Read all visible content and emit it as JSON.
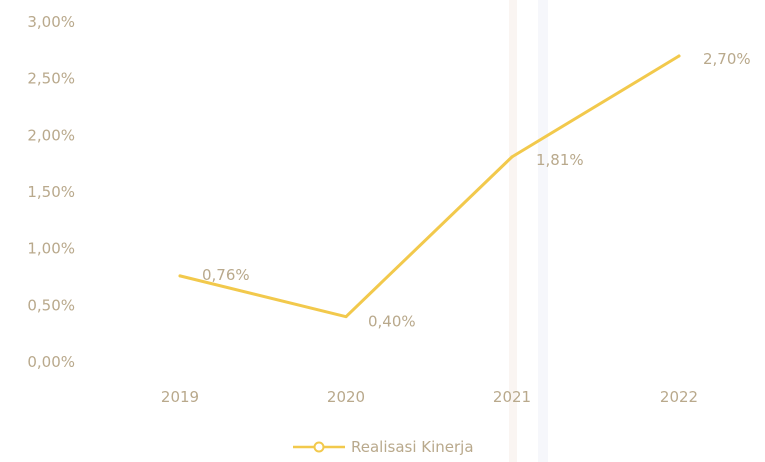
{
  "chart_data": {
    "type": "line",
    "categories": [
      "2019",
      "2020",
      "2021",
      "2022"
    ],
    "series": [
      {
        "name": "Realisasi Kinerja",
        "values": [
          0.76,
          0.4,
          1.81,
          2.7
        ],
        "labels": [
          "0,76%",
          "0,40%",
          "1,81%",
          "2,70%"
        ],
        "color": "#f2c94c"
      }
    ],
    "y_ticks": [
      "0,00%",
      "0,50%",
      "1,00%",
      "1,50%",
      "2,00%",
      "2,50%",
      "3,00%"
    ],
    "ylim": [
      0,
      3
    ],
    "grid": false,
    "legend": "bottom",
    "colors": {
      "text": "#b9a98c",
      "line": "#f2c94c"
    }
  }
}
